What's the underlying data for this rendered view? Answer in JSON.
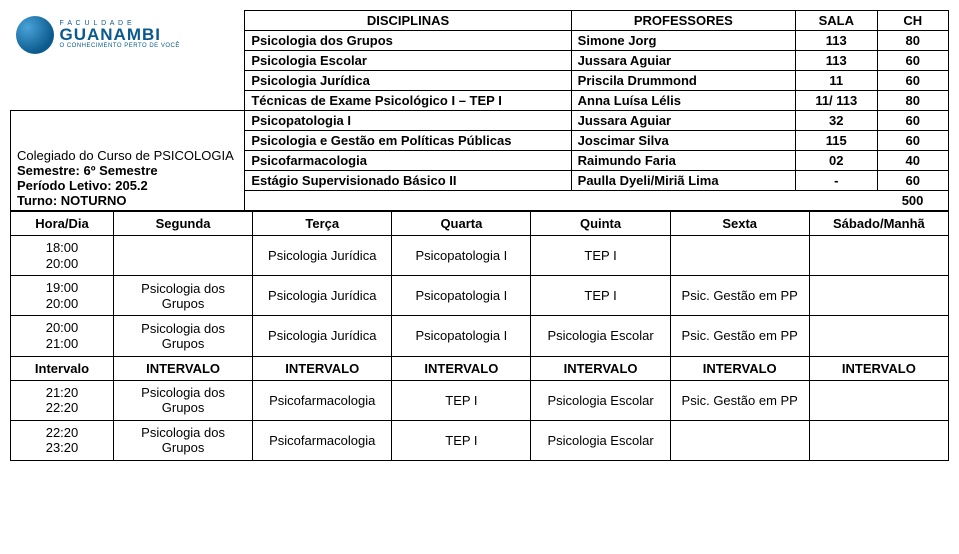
{
  "logo": {
    "top": "F A C U L D A D E",
    "name": "GUANAMBI",
    "sub": "O CONHECIMENTO PERTO DE VOCÊ"
  },
  "meta": {
    "line1": "Colegiado do Curso de PSICOLOGIA",
    "line2": "Semestre: 6º Semestre",
    "line3": "Período Letivo: 205.2",
    "line4": "Turno: NOTURNO"
  },
  "disc": {
    "headers": [
      "DISCIPLINAS",
      "PROFESSORES",
      "SALA",
      "CH"
    ],
    "rows": [
      [
        "Psicologia dos Grupos",
        "Simone Jorg",
        "113",
        "80"
      ],
      [
        "Psicologia Escolar",
        "Jussara Aguiar",
        "113",
        "60"
      ],
      [
        "Psicologia Jurídica",
        "Priscila Drummond",
        "11",
        "60"
      ],
      [
        "Técnicas de Exame Psicológico I – TEP I",
        "Anna Luísa Lélis",
        "11/ 113",
        "80"
      ],
      [
        "Psicopatologia I",
        "Jussara Aguiar",
        "32",
        "60"
      ],
      [
        "Psicologia e Gestão em Políticas Públicas",
        "Joscimar Silva",
        "115",
        "60"
      ],
      [
        "Psicofarmacologia",
        "Raimundo Faria",
        "02",
        "40"
      ],
      [
        "Estágio Supervisionado Básico II",
        "Paulla Dyeli/Miriã Lima",
        "-",
        "60"
      ]
    ],
    "total": "500"
  },
  "sched": {
    "headers": [
      "Hora/Dia",
      "Segunda",
      "Terça",
      "Quarta",
      "Quinta",
      "Sexta",
      "Sábado/Manhã"
    ],
    "rows": [
      {
        "time": [
          "18:00",
          "20:00"
        ],
        "cells": [
          "",
          "Psicologia Jurídica",
          "Psicopatologia I",
          "TEP I",
          "",
          ""
        ]
      },
      {
        "time": [
          "19:00",
          "20:00"
        ],
        "cells": [
          "Psicologia dos\nGrupos",
          "Psicologia Jurídica",
          "Psicopatologia I",
          "TEP I",
          "Psic. Gestão em PP",
          ""
        ]
      },
      {
        "time": [
          "20:00",
          "21:00"
        ],
        "cells": [
          "Psicologia dos\nGrupos",
          "Psicologia Jurídica",
          "Psicopatologia I",
          "Psicologia Escolar",
          "Psic. Gestão em PP",
          ""
        ]
      }
    ],
    "interval": {
      "label": "Intervalo",
      "cells": [
        "INTERVALO",
        "INTERVALO",
        "INTERVALO",
        "INTERVALO",
        "INTERVALO",
        "INTERVALO"
      ]
    },
    "rows2": [
      {
        "time": [
          "21:20",
          "22:20"
        ],
        "cells": [
          "Psicologia dos\nGrupos",
          "Psicofarmacologia",
          "TEP I",
          "Psicologia Escolar",
          "Psic. Gestão em PP",
          ""
        ]
      },
      {
        "time": [
          "22:20",
          "23:20"
        ],
        "cells": [
          "Psicologia dos\nGrupos",
          "Psicofarmacologia",
          "TEP I",
          "Psicologia Escolar",
          "",
          ""
        ]
      }
    ]
  }
}
